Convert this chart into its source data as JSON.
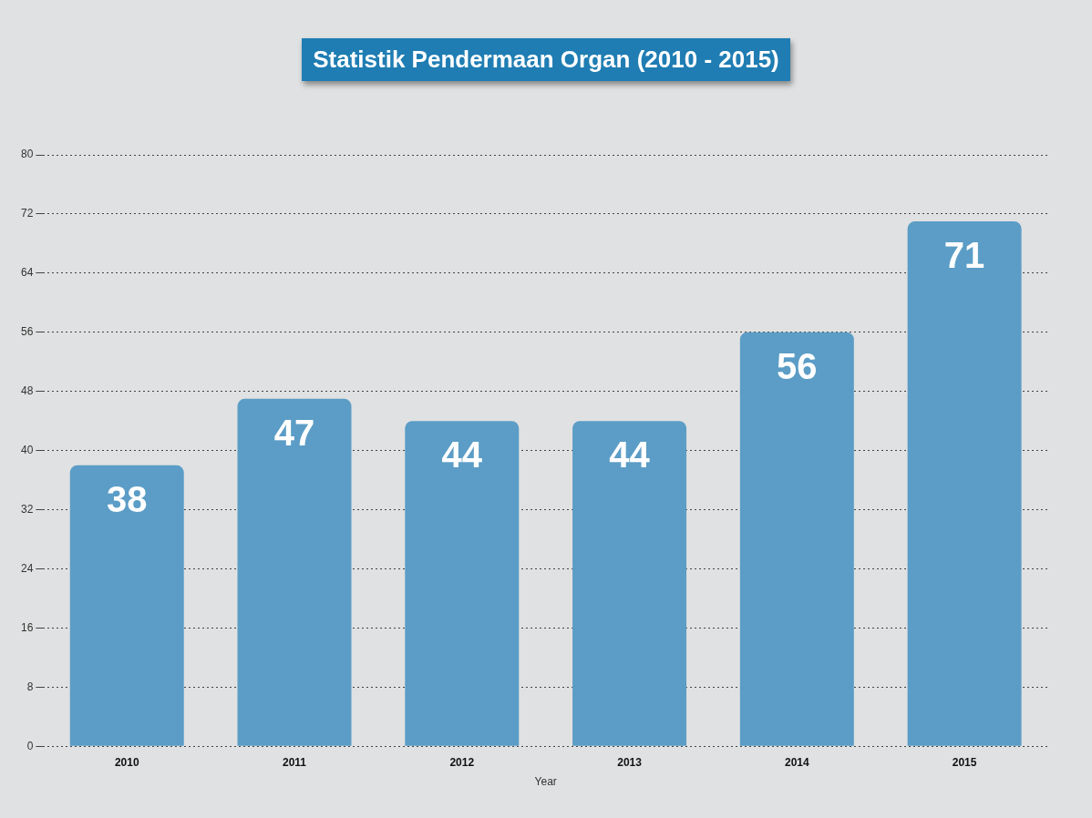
{
  "chart_data": {
    "type": "bar",
    "title": "Statistik Pendermaan Organ (2010 - 2015)",
    "xlabel": "Year",
    "categories": [
      "2010",
      "2011",
      "2012",
      "2013",
      "2014",
      "2015"
    ],
    "values": [
      38,
      47,
      44,
      44,
      56,
      71
    ],
    "color": "#5b9dc6",
    "ylim": [
      0,
      80
    ],
    "yticks": [
      0,
      8,
      16,
      24,
      32,
      40,
      48,
      56,
      64,
      72,
      80
    ],
    "grid": "y",
    "data_labels": true
  }
}
